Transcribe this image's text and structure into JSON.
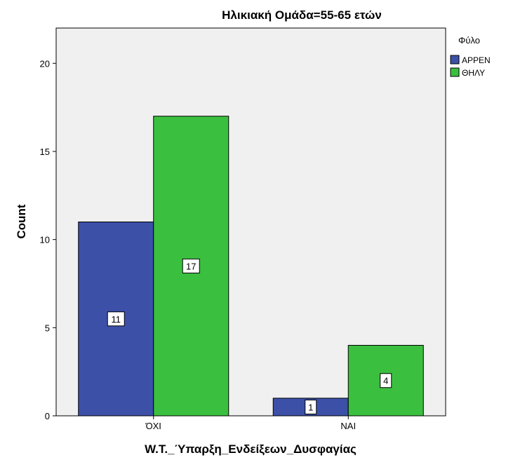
{
  "chart_data": {
    "type": "bar",
    "title": "Ηλικιακή Ομάδα=55-65 ετών",
    "xlabel": "W.T._Ύπαρξη_Ενδείξεων_Δυσφαγίας",
    "ylabel": "Count",
    "categories": [
      "ΌΧΙ",
      "ΝΑΙ"
    ],
    "series": [
      {
        "name": "ΑΡΡΕΝ",
        "values": [
          11,
          1
        ],
        "color": "#3c50a8"
      },
      {
        "name": "ΘΗΛΥ",
        "values": [
          17,
          4
        ],
        "color": "#3bbf3f"
      }
    ],
    "ylim": [
      0,
      22
    ],
    "yticks": [
      0,
      5,
      10,
      15,
      20
    ],
    "grid": false,
    "plot_background": "#f0f0f0",
    "legend": {
      "title": "Φύλο",
      "placement": "right-top"
    },
    "data_labels": true
  }
}
